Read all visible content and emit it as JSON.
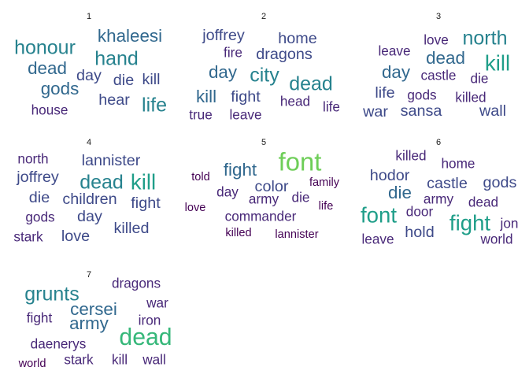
{
  "chart_data": {
    "type": "wordcloud",
    "color_scale": [
      "#440154",
      "#482878",
      "#3e4a89",
      "#31688e",
      "#26828e",
      "#1f9e89",
      "#35b779",
      "#6ece58",
      "#b5de2b"
    ],
    "panels": [
      {
        "label": "1",
        "words": [
          {
            "text": "khaleesi",
            "weight": 4
          },
          {
            "text": "honour",
            "weight": 5
          },
          {
            "text": "hand",
            "weight": 5
          },
          {
            "text": "dead",
            "weight": 4
          },
          {
            "text": "day",
            "weight": 3
          },
          {
            "text": "die",
            "weight": 3
          },
          {
            "text": "kill",
            "weight": 3
          },
          {
            "text": "gods",
            "weight": 4
          },
          {
            "text": "hear",
            "weight": 3
          },
          {
            "text": "life",
            "weight": 5
          },
          {
            "text": "house",
            "weight": 2
          }
        ]
      },
      {
        "label": "2",
        "words": [
          {
            "text": "joffrey",
            "weight": 3
          },
          {
            "text": "home",
            "weight": 3
          },
          {
            "text": "fire",
            "weight": 2
          },
          {
            "text": "dragons",
            "weight": 3
          },
          {
            "text": "day",
            "weight": 4
          },
          {
            "text": "city",
            "weight": 5
          },
          {
            "text": "dead",
            "weight": 5
          },
          {
            "text": "kill",
            "weight": 4
          },
          {
            "text": "fight",
            "weight": 3
          },
          {
            "text": "head",
            "weight": 2
          },
          {
            "text": "life",
            "weight": 2
          },
          {
            "text": "true",
            "weight": 2
          },
          {
            "text": "leave",
            "weight": 2
          }
        ]
      },
      {
        "label": "3",
        "words": [
          {
            "text": "love",
            "weight": 2
          },
          {
            "text": "north",
            "weight": 5
          },
          {
            "text": "leave",
            "weight": 2
          },
          {
            "text": "dead",
            "weight": 4
          },
          {
            "text": "kill",
            "weight": 6
          },
          {
            "text": "day",
            "weight": 4
          },
          {
            "text": "castle",
            "weight": 2
          },
          {
            "text": "die",
            "weight": 2
          },
          {
            "text": "life",
            "weight": 3
          },
          {
            "text": "gods",
            "weight": 2
          },
          {
            "text": "killed",
            "weight": 2
          },
          {
            "text": "war",
            "weight": 3
          },
          {
            "text": "sansa",
            "weight": 3
          },
          {
            "text": "wall",
            "weight": 3
          }
        ]
      },
      {
        "label": "4",
        "words": [
          {
            "text": "north",
            "weight": 2
          },
          {
            "text": "lannister",
            "weight": 3
          },
          {
            "text": "joffrey",
            "weight": 3
          },
          {
            "text": "dead",
            "weight": 5
          },
          {
            "text": "kill",
            "weight": 6
          },
          {
            "text": "die",
            "weight": 3
          },
          {
            "text": "children",
            "weight": 3
          },
          {
            "text": "fight",
            "weight": 3
          },
          {
            "text": "gods",
            "weight": 2
          },
          {
            "text": "day",
            "weight": 3
          },
          {
            "text": "killed",
            "weight": 3
          },
          {
            "text": "stark",
            "weight": 2
          },
          {
            "text": "love",
            "weight": 3
          }
        ]
      },
      {
        "label": "5",
        "words": [
          {
            "text": "font",
            "weight": 8
          },
          {
            "text": "told",
            "weight": 1
          },
          {
            "text": "fight",
            "weight": 4
          },
          {
            "text": "family",
            "weight": 1
          },
          {
            "text": "color",
            "weight": 3
          },
          {
            "text": "day",
            "weight": 2
          },
          {
            "text": "army",
            "weight": 2
          },
          {
            "text": "die",
            "weight": 2
          },
          {
            "text": "love",
            "weight": 1
          },
          {
            "text": "life",
            "weight": 1
          },
          {
            "text": "commander",
            "weight": 2
          },
          {
            "text": "killed",
            "weight": 1
          },
          {
            "text": "lannister",
            "weight": 1
          }
        ]
      },
      {
        "label": "6",
        "words": [
          {
            "text": "killed",
            "weight": 2
          },
          {
            "text": "home",
            "weight": 2
          },
          {
            "text": "hodor",
            "weight": 3
          },
          {
            "text": "castle",
            "weight": 3
          },
          {
            "text": "gods",
            "weight": 3
          },
          {
            "text": "die",
            "weight": 4
          },
          {
            "text": "army",
            "weight": 2
          },
          {
            "text": "dead",
            "weight": 2
          },
          {
            "text": "font",
            "weight": 6
          },
          {
            "text": "door",
            "weight": 2
          },
          {
            "text": "fight",
            "weight": 6
          },
          {
            "text": "jon",
            "weight": 2
          },
          {
            "text": "leave",
            "weight": 2
          },
          {
            "text": "hold",
            "weight": 3
          },
          {
            "text": "world",
            "weight": 2
          }
        ]
      },
      {
        "label": "7",
        "words": [
          {
            "text": "grunts",
            "weight": 5
          },
          {
            "text": "dragons",
            "weight": 2
          },
          {
            "text": "war",
            "weight": 2
          },
          {
            "text": "cersei",
            "weight": 4
          },
          {
            "text": "fight",
            "weight": 2
          },
          {
            "text": "army",
            "weight": 4
          },
          {
            "text": "iron",
            "weight": 2
          },
          {
            "text": "dead",
            "weight": 7
          },
          {
            "text": "daenerys",
            "weight": 2
          },
          {
            "text": "world",
            "weight": 1
          },
          {
            "text": "stark",
            "weight": 2
          },
          {
            "text": "kill",
            "weight": 2
          },
          {
            "text": "wall",
            "weight": 2
          }
        ]
      }
    ]
  }
}
